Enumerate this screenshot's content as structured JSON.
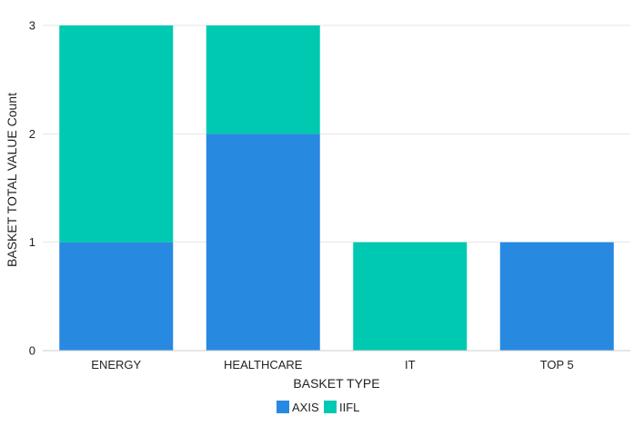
{
  "chart_data": {
    "type": "bar",
    "stacked": true,
    "categories": [
      "ENERGY",
      "HEALTHCARE",
      "IT",
      "TOP 5"
    ],
    "series": [
      {
        "name": "AXIS",
        "values": [
          1,
          2,
          0,
          1
        ],
        "color": "#2889e1"
      },
      {
        "name": "IIFL",
        "values": [
          2,
          1,
          1,
          0
        ],
        "color": "#00c9b1"
      }
    ],
    "xlabel": "BASKET TYPE",
    "ylabel": "BASKET TOTAL VALUE Count",
    "ylim": [
      0,
      3
    ],
    "yticks": [
      "0",
      "1",
      "2",
      "3"
    ],
    "grid": true,
    "legend": "bottom-center"
  }
}
